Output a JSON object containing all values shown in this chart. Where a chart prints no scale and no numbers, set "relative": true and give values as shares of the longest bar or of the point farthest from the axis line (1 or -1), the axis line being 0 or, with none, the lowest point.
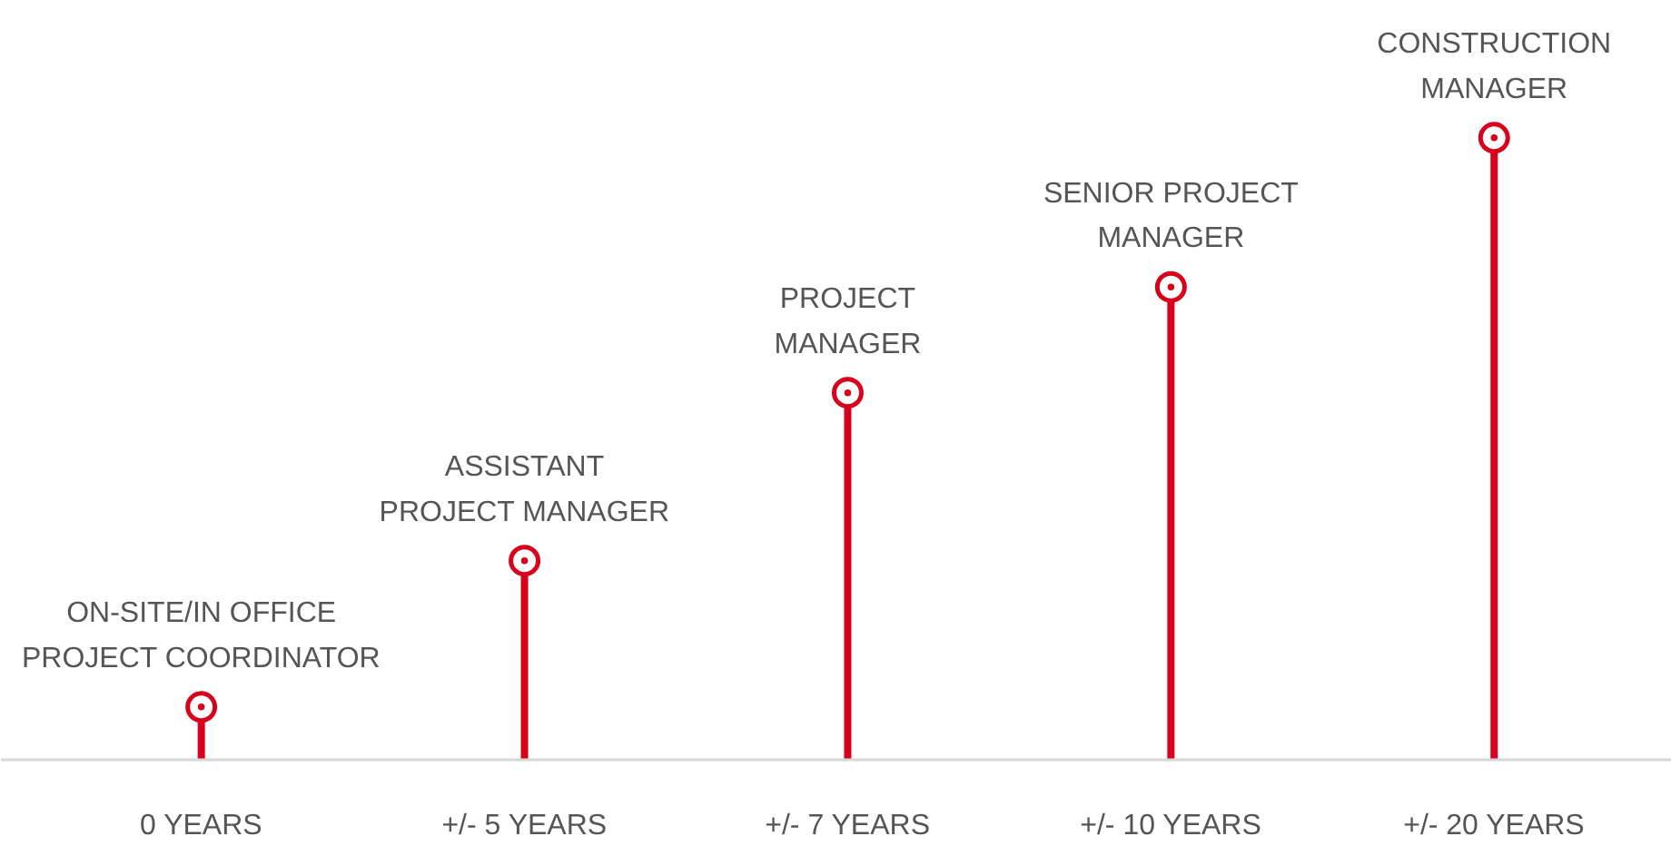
{
  "chart_data": {
    "type": "lollipop",
    "relative": true,
    "categories": [
      "0 YEARS",
      "+/- 5 YEARS",
      "+/- 7 YEARS",
      "+/- 10 YEARS",
      "+/- 20 YEARS"
    ],
    "values": [
      0.085,
      0.32,
      0.59,
      0.76,
      1
    ],
    "color": "#d9001b",
    "marker": "circle",
    "annotations": [
      {
        "text": "ON-SITE/IN OFFICE\nPROJECT COORDINATOR",
        "x": "0 YEARS",
        "y": 0.085
      },
      {
        "text": "ASSISTANT\nPROJECT MANAGER",
        "x": "+/- 5 YEARS",
        "y": 0.32
      },
      {
        "text": "PROJECT\nMANAGER",
        "x": "+/- 7 YEARS",
        "y": 0.59
      },
      {
        "text": "SENIOR PROJECT\nMANAGER",
        "x": "+/- 10 YEARS",
        "y": 0.76
      },
      {
        "text": "CONSTRUCTION\nMANAGER",
        "x": "+/- 20 YEARS",
        "y": 1
      }
    ]
  }
}
